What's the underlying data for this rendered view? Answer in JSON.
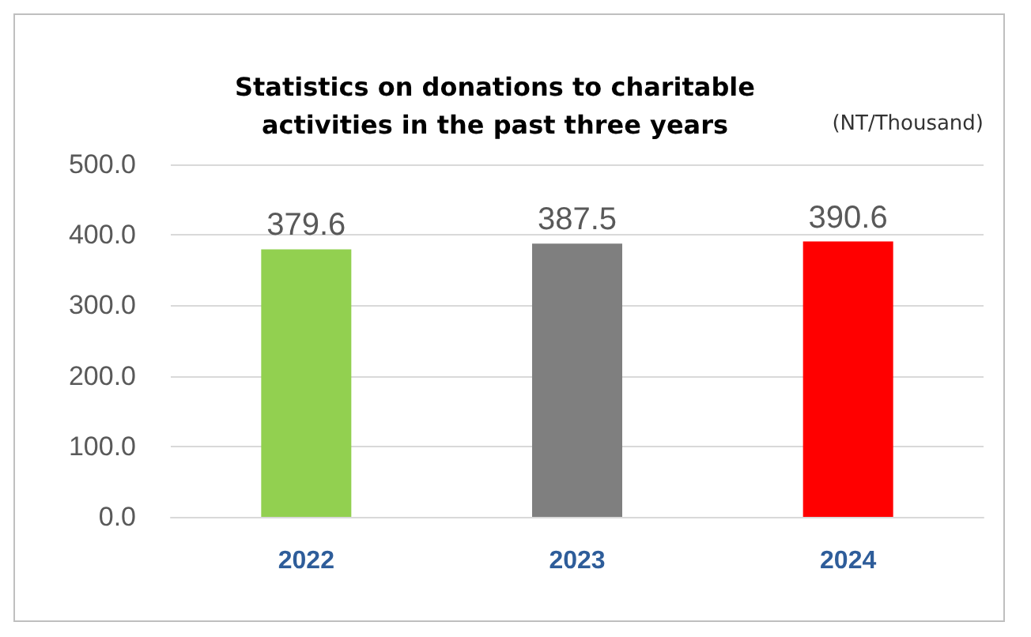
{
  "chart_data": {
    "type": "bar",
    "title": "Statistics on donations to charitable\nactivities in the past three years",
    "categories": [
      "2022",
      "2023",
      "2024"
    ],
    "values": [
      379.6,
      387.5,
      390.6
    ],
    "colors": [
      "#92d050",
      "#7f7f7f",
      "#ff0000"
    ],
    "ylim": [
      0,
      500
    ],
    "yticks": [
      {
        "value": 0,
        "label": "0.0"
      },
      {
        "value": 100,
        "label": "100.0"
      },
      {
        "value": 200,
        "label": "200.0"
      },
      {
        "value": 300,
        "label": "300.0"
      },
      {
        "value": 400,
        "label": "400.0"
      },
      {
        "value": 500,
        "label": "500.0"
      }
    ],
    "grid": "y",
    "data_labels": true,
    "annotations": [
      "(NT/Thousand)"
    ]
  }
}
